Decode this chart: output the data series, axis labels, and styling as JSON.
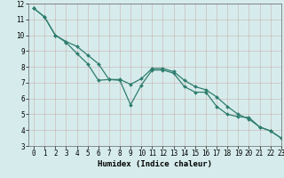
{
  "xlabel": "Humidex (Indice chaleur)",
  "xlim": [
    -0.5,
    23
  ],
  "ylim": [
    3,
    12
  ],
  "xticks": [
    0,
    1,
    2,
    3,
    4,
    5,
    6,
    7,
    8,
    9,
    10,
    11,
    12,
    13,
    14,
    15,
    16,
    17,
    18,
    19,
    20,
    21,
    22,
    23
  ],
  "yticks": [
    3,
    4,
    5,
    6,
    7,
    8,
    9,
    10,
    11,
    12
  ],
  "line_color": "#2e7d6e",
  "bg_color": "#d6ecec",
  "grid_major_color": "#c0d0d0",
  "grid_minor_color": "#dde8e8",
  "line1_x": [
    0,
    1,
    2,
    3,
    4,
    5,
    6,
    7,
    8,
    9,
    10,
    11,
    12,
    13,
    14,
    15,
    16,
    17,
    18,
    19,
    20,
    21,
    22,
    23
  ],
  "line1_y": [
    11.7,
    11.15,
    10.0,
    9.6,
    9.3,
    8.75,
    8.2,
    7.2,
    7.2,
    6.9,
    7.25,
    7.9,
    7.9,
    7.7,
    7.15,
    6.75,
    6.55,
    6.1,
    5.5,
    5.0,
    4.7,
    4.2,
    3.95,
    3.5
  ],
  "line2_x": [
    0,
    1,
    2,
    3,
    4,
    5,
    6,
    7,
    8,
    9,
    10,
    11,
    12,
    13,
    14,
    15,
    16,
    17,
    18,
    19,
    20,
    21,
    22,
    23
  ],
  "line2_y": [
    11.7,
    11.15,
    10.0,
    9.55,
    8.85,
    8.2,
    7.15,
    7.2,
    7.15,
    5.6,
    6.85,
    7.8,
    7.8,
    7.6,
    6.75,
    6.4,
    6.4,
    5.5,
    5.0,
    4.85,
    4.8,
    4.2,
    3.95,
    3.5
  ],
  "tick_fontsize": 5.5,
  "xlabel_fontsize": 6.5,
  "marker_size": 2.0,
  "line_width": 0.9
}
